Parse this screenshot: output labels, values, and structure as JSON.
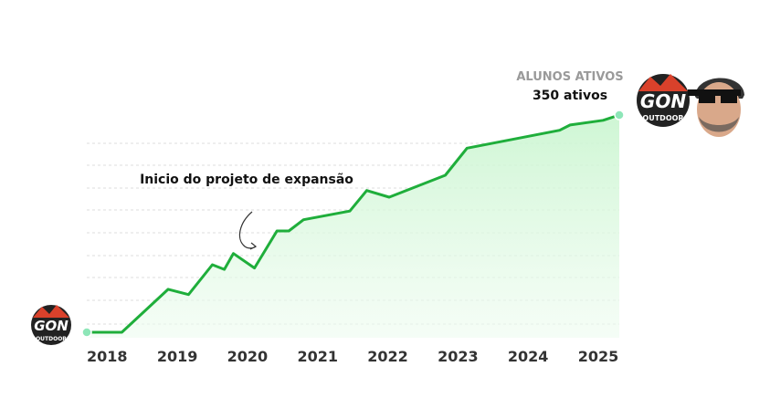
{
  "chart_data": {
    "type": "area",
    "x": [
      2017.71,
      2018.21,
      2018.87,
      2019.16,
      2019.5,
      2019.67,
      2019.8,
      2020.1,
      2020.42,
      2020.59,
      2020.8,
      2021.46,
      2021.7,
      2022.02,
      2022.82,
      2023.13,
      2024.45,
      2024.6,
      2025.07,
      2025.3
    ],
    "y": [
      22,
      22,
      87,
      79,
      124,
      117,
      141,
      119,
      175,
      175,
      192,
      205,
      236,
      226,
      259,
      300,
      327,
      335,
      342,
      350
    ],
    "color": "#1fae3b",
    "xlim": [
      2017.71,
      2025.3
    ],
    "xticks": [
      2018,
      2019,
      2020,
      2021,
      2022,
      2023,
      2024,
      2025
    ],
    "ylim": [
      0,
      350
    ],
    "annotation": "Inicio do projeto de expansão",
    "end_caption": "ALUNOS ATIVOS",
    "end_value_label": "350 ativos",
    "logo": {
      "mark": "GON",
      "subtext": "OUTDOOR"
    }
  }
}
